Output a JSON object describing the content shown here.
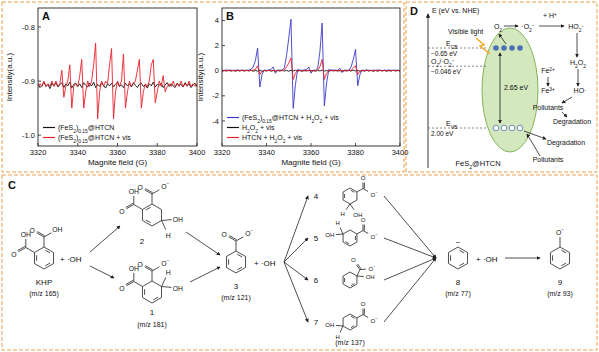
{
  "chart_data": [
    {
      "type": "line",
      "title": "A",
      "x_label": "Magnite field (G)",
      "y_label": "Intensity(a.u.)",
      "x": [
        3320,
        3321,
        3322,
        3323,
        3324,
        3325,
        3326,
        3327,
        3328,
        3329,
        3330,
        3331,
        3332,
        3333,
        3334,
        3335,
        3336,
        3337,
        3338,
        3339,
        3340,
        3341,
        3342,
        3343,
        3344,
        3345,
        3346,
        3347,
        3348,
        3349,
        3350,
        3351,
        3352,
        3353,
        3354,
        3355,
        3356,
        3357,
        3358,
        3359,
        3360,
        3361,
        3362,
        3363,
        3364,
        3365,
        3366,
        3367,
        3368,
        3369,
        3370,
        3371,
        3372,
        3373,
        3374,
        3375,
        3376,
        3377,
        3378,
        3379,
        3380,
        3381,
        3382,
        3383,
        3384,
        3385,
        3386,
        3387,
        3388,
        3389,
        3390,
        3391,
        3392,
        3393,
        3394,
        3395,
        3396,
        3397,
        3398,
        3399,
        3400
      ],
      "xlim": [
        3320,
        3400
      ],
      "xticks": [
        3320,
        3340,
        3360,
        3380,
        3400
      ],
      "ylim": [
        -1.02,
        -0.765
      ],
      "yticks": [
        {
          "value": -1,
          "label": "-1.0"
        },
        -0.9,
        -0.8
      ],
      "grid": false,
      "legend": "lower left",
      "series": [
        {
          "name": "(FeS2)0.15@HTCN",
          "color": "#111111",
          "values": [
            -0.905,
            -0.912,
            -0.908,
            -0.902,
            -0.91,
            -0.906,
            -0.914,
            -0.904,
            -0.909,
            -0.903,
            -0.911,
            -0.907,
            -0.903,
            -0.912,
            -0.905,
            -0.909,
            -0.902,
            -0.913,
            -0.906,
            -0.904,
            -0.91,
            -0.905,
            -0.912,
            -0.903,
            -0.908,
            -0.911,
            -0.904,
            -0.909,
            -0.902,
            -0.912,
            -0.906,
            -0.91,
            -0.903,
            -0.908,
            -0.913,
            -0.905,
            -0.909,
            -0.904,
            -0.911,
            -0.906,
            -0.902,
            -0.91,
            -0.907,
            -0.912,
            -0.904,
            -0.909,
            -0.905,
            -0.911,
            -0.903,
            -0.908,
            -0.912,
            -0.906,
            -0.904,
            -0.91,
            -0.907,
            -0.913,
            -0.905,
            -0.909,
            -0.902,
            -0.911,
            -0.906,
            -0.908,
            -0.904,
            -0.912,
            -0.907,
            -0.903,
            -0.91,
            -0.905,
            -0.909,
            -0.912,
            -0.904,
            -0.908,
            -0.906,
            -0.911,
            -0.903,
            -0.909,
            -0.905,
            -0.912,
            -0.907,
            -0.904,
            -0.91
          ]
        },
        {
          "name": "(FeS2)0.15@HTCN + vis",
          "color": "#e8202a",
          "values": [
            -0.91,
            -0.905,
            -0.91,
            -0.9,
            -0.91,
            -0.905,
            -0.91,
            -0.9,
            -0.91,
            -0.9,
            -0.91,
            -0.905,
            -0.88,
            -0.93,
            -0.91,
            -0.9,
            -0.87,
            -0.95,
            -0.91,
            -0.905,
            -0.91,
            -0.89,
            -0.86,
            -0.95,
            -0.92,
            -0.9,
            -0.91,
            -0.9,
            -0.87,
            -0.83,
            -0.97,
            -0.92,
            -0.9,
            -0.91,
            -0.9,
            -0.905,
            -0.87,
            -0.84,
            -0.97,
            -0.92,
            -0.9,
            -0.91,
            -0.9,
            -0.85,
            -0.95,
            -0.92,
            -0.9,
            -0.91,
            -0.905,
            -0.9,
            -0.88,
            -0.86,
            -0.95,
            -0.92,
            -0.905,
            -0.91,
            -0.9,
            -0.87,
            -0.86,
            -0.94,
            -0.92,
            -0.9,
            -0.91,
            -0.89,
            -0.92,
            -0.91,
            -0.905,
            -0.91,
            -0.9,
            -0.91,
            -0.905,
            -0.91,
            -0.9,
            -0.91,
            -0.905,
            -0.91,
            -0.9,
            -0.91,
            -0.905,
            -0.91,
            -0.905
          ]
        }
      ]
    },
    {
      "type": "line",
      "title": "B",
      "x_label": "Magnite field (G)",
      "y_label": "Intensity(a.u.)",
      "x": [
        3320,
        3321,
        3322,
        3323,
        3324,
        3325,
        3326,
        3327,
        3328,
        3329,
        3330,
        3331,
        3332,
        3333,
        3334,
        3335,
        3336,
        3337,
        3338,
        3339,
        3340,
        3341,
        3342,
        3343,
        3344,
        3345,
        3346,
        3347,
        3348,
        3349,
        3350,
        3351,
        3352,
        3353,
        3354,
        3355,
        3356,
        3357,
        3358,
        3359,
        3360,
        3361,
        3362,
        3363,
        3364,
        3365,
        3366,
        3367,
        3368,
        3369,
        3370,
        3371,
        3372,
        3373,
        3374,
        3375,
        3376,
        3377,
        3378,
        3379,
        3380,
        3381,
        3382,
        3383,
        3384,
        3385,
        3386,
        3387,
        3388,
        3389,
        3390,
        3391,
        3392,
        3393,
        3394,
        3395,
        3396,
        3397,
        3398,
        3399,
        3400
      ],
      "xlim": [
        3320,
        3400
      ],
      "xticks": [
        3320,
        3340,
        3360,
        3380,
        3400
      ],
      "ylim": [
        -6,
        5
      ],
      "yticks": [
        -4,
        -2,
        0,
        2,
        4
      ],
      "grid": false,
      "legend": "lower left",
      "series": [
        {
          "name": "(FeS2)0.15@HTCN + H2O2 + vis",
          "color": "#3a3acb",
          "values": [
            0.05,
            0.02,
            0.06,
            0.03,
            0.05,
            0.02,
            0.04,
            0.06,
            0.03,
            0.05,
            0.04,
            0.02,
            0.05,
            0.1,
            0.3,
            0.8,
            1.8,
            -1.3,
            -0.3,
            0.05,
            0.03,
            0.05,
            0.1,
            0.3,
            -0.2,
            0.04,
            0.06,
            0.03,
            0.2,
            1.2,
            2.6,
            4.1,
            -3.0,
            -1.1,
            0.1,
            0.05,
            0.03,
            0.06,
            0.1,
            0.3,
            -0.2,
            0.04,
            0.05,
            0.2,
            1.5,
            3.8,
            -2.8,
            -1.0,
            0.1,
            0.04,
            0.06,
            0.03,
            0.05,
            0.2,
            -0.15,
            0.04,
            0.05,
            0.02,
            0.3,
            0.9,
            1.7,
            -1.2,
            -0.3,
            0.05,
            0.03,
            0.06,
            0.04,
            0.02,
            0.05,
            0.03,
            0.06,
            0.04,
            0.02,
            0.05,
            0.03,
            0.06,
            0.04,
            0.02,
            0.05,
            0.03,
            0.04
          ]
        },
        {
          "name": "H2O2 + vis",
          "color": "#111111",
          "values": [
            -0.05,
            0.03,
            -0.02,
            0.04,
            -0.03,
            0.02,
            -0.04,
            0.03,
            -0.02,
            0.04,
            -0.03,
            0.05,
            -0.02,
            0.03,
            -0.04,
            0.02,
            -0.03,
            0.04,
            -0.05,
            0.03,
            -0.02,
            0.04,
            -0.03,
            0.02,
            -0.04,
            0.03,
            -0.02,
            0.05,
            -0.03,
            0.02,
            -0.04,
            0.03,
            -0.02,
            0.04,
            -0.03,
            0.02,
            -0.05,
            0.03,
            -0.02,
            0.04,
            -0.03,
            0.02,
            -0.04,
            0.03,
            -0.02,
            0.05,
            -0.03,
            0.02,
            -0.04,
            0.03,
            -0.02,
            0.04,
            -0.03,
            0.02,
            -0.04,
            0.03,
            -0.02,
            0.04,
            -0.03,
            0.05,
            -0.02,
            0.03,
            -0.04,
            0.02,
            -0.03,
            0.04,
            -0.02,
            0.03,
            -0.05,
            0.02,
            -0.03,
            0.04,
            -0.02,
            0.03,
            -0.04,
            0.02,
            -0.03,
            0.05,
            -0.02,
            0.03,
            -0.03
          ]
        },
        {
          "name": "HTCN + H2O2 + vis",
          "color": "#e8202a",
          "values": [
            0.0,
            0.02,
            -0.01,
            0.01,
            0.0,
            0.02,
            -0.01,
            0.01,
            0.0,
            0.02,
            -0.01,
            0.01,
            0.0,
            0.02,
            0.05,
            0.1,
            0.4,
            -0.3,
            -0.05,
            0.01,
            0.0,
            0.02,
            -0.01,
            0.01,
            0.0,
            0.02,
            -0.01,
            0.01,
            0.05,
            0.3,
            0.6,
            1.0,
            -0.7,
            -0.2,
            0.01,
            0.0,
            0.02,
            -0.01,
            0.01,
            0.0,
            0.02,
            -0.01,
            0.01,
            0.05,
            0.3,
            0.9,
            -0.7,
            -0.2,
            0.01,
            0.0,
            0.02,
            -0.01,
            0.01,
            0.0,
            0.02,
            -0.01,
            0.01,
            0.0,
            0.05,
            0.2,
            0.4,
            -0.3,
            -0.05,
            0.01,
            0.0,
            0.02,
            -0.01,
            0.01,
            0.0,
            0.02,
            -0.01,
            0.01,
            0.0,
            0.02,
            -0.01,
            0.01,
            0.0,
            0.02,
            -0.01,
            0.01,
            0.0
          ]
        }
      ]
    }
  ],
  "scheme": {
    "title": "C",
    "reagents": [
      "+ ·OH",
      "+ ·OH",
      "+ ·OH"
    ],
    "molecules": [
      {
        "label": "KHP",
        "mz": "(m/z 165)",
        "double_bonds": [
          0,
          2,
          4
        ],
        "substituents": [
          {
            "site": 5,
            "kind": "carboxyl",
            "texts": [
              "O",
              "OH"
            ]
          },
          {
            "site": 0,
            "kind": "carboxyl",
            "texts": [
              "O",
              "OH"
            ]
          }
        ]
      },
      {
        "label": "1",
        "mz": "(m/z 181)",
        "double_bonds": [
          2,
          4
        ],
        "substituents": [
          {
            "site": 5,
            "kind": "carboxyl",
            "texts": [
              "O",
              "OH"
            ]
          },
          {
            "site": 0,
            "kind": "carboxyl",
            "texts": [
              "O",
              "O−"
            ]
          },
          {
            "site": 1,
            "kind": "atom",
            "texts": [
              "H"
            ]
          },
          {
            "site": 1,
            "kind": "atom",
            "texts": [
              "OH"
            ]
          }
        ]
      },
      {
        "label": "2",
        "double_bonds": [
          3,
          5
        ],
        "substituents": [
          {
            "site": 5,
            "kind": "carboxyl",
            "texts": [
              "O",
              "OH"
            ]
          },
          {
            "site": 0,
            "kind": "carboxyl",
            "texts": [
              "O",
              "O−"
            ]
          },
          {
            "site": 2,
            "kind": "atom",
            "texts": [
              "OH"
            ]
          },
          {
            "site": 2,
            "kind": "atom",
            "texts": [
              "H"
            ]
          }
        ]
      },
      {
        "label": "3",
        "mz": "(m/z 121)",
        "double_bonds": [
          0,
          2,
          4
        ],
        "substituents": [
          {
            "site": 0,
            "kind": "carboxyl",
            "texts": [
              "O",
              "O−"
            ]
          }
        ]
      },
      {
        "label": "4",
        "double_bonds": [
          0,
          4
        ],
        "substituents": [
          {
            "site": 1,
            "kind": "carboxyl",
            "texts": [
              "O",
              "O−"
            ]
          },
          {
            "site": 3,
            "kind": "atom",
            "texts": [
              "OH"
            ]
          },
          {
            "site": 3,
            "kind": "atom",
            "texts": [
              "H"
            ]
          }
        ]
      },
      {
        "label": "5",
        "double_bonds": [
          1,
          3
        ],
        "substituents": [
          {
            "site": 1,
            "kind": "carboxyl",
            "texts": [
              "O",
              "O−"
            ]
          },
          {
            "site": 5,
            "kind": "atom",
            "texts": [
              "OH"
            ]
          },
          {
            "site": 5,
            "kind": "atom",
            "texts": [
              "H"
            ]
          }
        ]
      },
      {
        "label": "6",
        "double_bonds": [
          2,
          4
        ],
        "substituents": [
          {
            "site": 1,
            "kind": "carboxyl",
            "texts": [
              "O",
              "O−"
            ]
          },
          {
            "site": 1,
            "kind": "atom",
            "texts": [
              "OH"
            ]
          }
        ]
      },
      {
        "label": "7",
        "mz": "(m/z 137)",
        "double_bonds": [
          0,
          2
        ],
        "substituents": [
          {
            "site": 1,
            "kind": "carboxyl",
            "texts": [
              "O",
              "O−"
            ]
          },
          {
            "site": 4,
            "kind": "atom",
            "texts": [
              "H"
            ]
          },
          {
            "site": 4,
            "kind": "atom",
            "texts": [
              "OH"
            ]
          }
        ]
      },
      {
        "label": "8",
        "mz": "(m/z 77)",
        "double_bonds": [
          0,
          2,
          4
        ],
        "substituents": [
          {
            "site": 0,
            "kind": "charge",
            "texts": [
              "−"
            ]
          }
        ]
      },
      {
        "label": "9",
        "mz": "(m/z 93)",
        "double_bonds": [
          0,
          2,
          4
        ],
        "substituents": [
          {
            "site": 0,
            "kind": "atom",
            "texts": [
              "O−"
            ]
          }
        ]
      }
    ]
  },
  "band_diagram": {
    "title": "D",
    "axis_label": "E (eV vs. NHE)",
    "light": "Visible light",
    "material": "FeS2@HTCN",
    "band_gap": "2.65 eV",
    "levels": [
      {
        "name": "ECB",
        "value": -0.65,
        "label": "−0.65 eV"
      },
      {
        "name": "O2/·O2−",
        "value": -0.046,
        "label": "−0.046 eV"
      },
      {
        "name": "EVB",
        "value": 2.0,
        "label": "2.00 eV"
      }
    ],
    "species": [
      "O2",
      "·O2−",
      "+ H+",
      "HO2·",
      "H2O2",
      "Fe2+",
      "Fe3+",
      "HO·",
      "Pollutants",
      "Degradation",
      "Degradation",
      "Pollutants"
    ]
  }
}
